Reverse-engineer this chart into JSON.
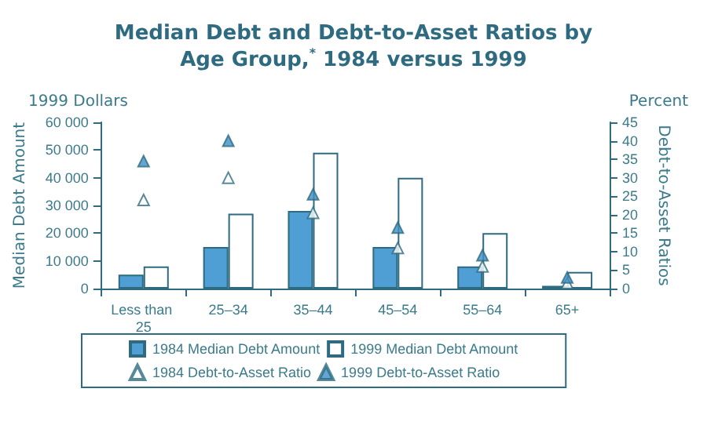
{
  "chart_data": {
    "type": "bar",
    "title": "Median Debt and Debt-to-Asset Ratios by\nAge Group,$^{*}$ 1984 versus 1999",
    "categories": [
      "Less than 25",
      "25–34",
      "35–44",
      "45–54",
      "55–64",
      "65+"
    ],
    "ylabel": "Median Debt Amount",
    "y2label": "Debt-to-Asset Ratios",
    "annotations": [
      "1999 Dollars",
      "Percent"
    ],
    "series": [
      {
        "name": "1984 Median Debt Amount",
        "color": "#4f9fd4",
        "values": [
          5000,
          15000,
          28000,
          15000,
          8000,
          1000
        ]
      },
      {
        "name": "1999 Median Debt Amount",
        "color": "#ffffff",
        "values": [
          8000,
          27000,
          49000,
          40000,
          20000,
          6000
        ]
      },
      {
        "name": "1984 Debt-to-Asset Ratio",
        "type": "scatter",
        "axis": "y2",
        "marker": "triangle",
        "color": "#ffffff",
        "values": [
          24,
          30,
          20.5,
          11,
          6,
          1.5
        ]
      },
      {
        "name": "1999 Debt-to-Asset Ratio",
        "type": "scatter",
        "axis": "y2",
        "marker": "triangle",
        "color": "#3f8fc6",
        "values": [
          34.5,
          40,
          25.5,
          16.5,
          9,
          3
        ]
      }
    ],
    "ylim": [
      0,
      60000
    ],
    "yticks": [
      {
        "value": 0,
        "label": "0"
      },
      {
        "value": 10000,
        "label": "10 000"
      },
      {
        "value": 20000,
        "label": "20 000"
      },
      {
        "value": 30000,
        "label": "30 000"
      },
      {
        "value": 40000,
        "label": "40 000"
      },
      {
        "value": 50000,
        "label": "50 000"
      },
      {
        "value": 60000,
        "label": "60 000"
      }
    ],
    "y2lim": [
      0,
      45
    ],
    "y2ticks": [
      0,
      5,
      10,
      15,
      20,
      25,
      30,
      35,
      40,
      45
    ],
    "legend": "bottom",
    "grid": false
  }
}
